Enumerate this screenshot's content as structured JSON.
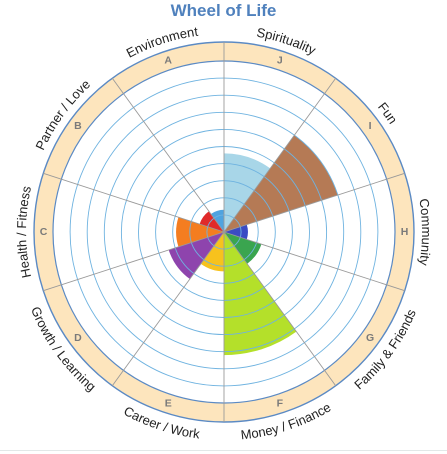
{
  "chart_data": {
    "type": "polar-area",
    "title": "Wheel of Life",
    "scale": {
      "min": 0,
      "max": 10,
      "rings": 10
    },
    "segments": [
      {
        "letter": "J",
        "label": "Spirituality",
        "value": 4.6,
        "color": "#a8d6e8"
      },
      {
        "letter": "I",
        "label": "Fun",
        "value": 7.0,
        "color": "#b57a55"
      },
      {
        "letter": "H",
        "label": "Community",
        "value": 1.4,
        "color": "#3b4bc4"
      },
      {
        "letter": "G",
        "label": "Family & Friends",
        "value": 2.3,
        "color": "#3aa54f"
      },
      {
        "letter": "F",
        "label": "Money / Finance",
        "value": 7.2,
        "color": "#b4e02a"
      },
      {
        "letter": "E",
        "label": "Career / Work",
        "value": 2.3,
        "color": "#f7c21d"
      },
      {
        "letter": "D",
        "label": "Growth / Learning",
        "value": 3.4,
        "color": "#8e44ad"
      },
      {
        "letter": "C",
        "label": "Health / Fitness",
        "value": 2.8,
        "color": "#f47d20"
      },
      {
        "letter": "B",
        "label": "Partner / Love",
        "value": 1.5,
        "color": "#e02a2a"
      },
      {
        "letter": "A",
        "label": "Environment",
        "value": 1.3,
        "color": "#4fa3e0"
      }
    ]
  },
  "colors": {
    "title": "#4f81bd",
    "ring_band": "#fde5bd",
    "ring_line": "#6fb3e0",
    "band_border": "#5b8ac4",
    "spoke": "#9a9a9a",
    "letter": "#7a7a7a",
    "category_text": "#222222",
    "bottom_rule": "#e2e8e8"
  }
}
